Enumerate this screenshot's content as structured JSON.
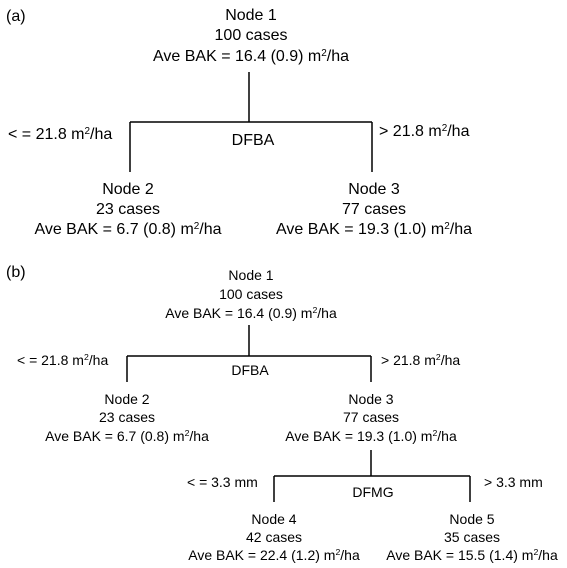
{
  "tree_a": {
    "panel_label": "(a)",
    "split": "DFBA",
    "left_condition": "< = 21.8 m",
    "right_condition": "> 21.8 m",
    "unit_power": "2",
    "unit_tail": "/ha",
    "node1": {
      "name": "Node 1",
      "cases": "100 cases",
      "ave": "Ave BAK = 16.4 (0.9) m"
    },
    "node2": {
      "name": "Node 2",
      "cases": "23 cases",
      "ave": "Ave BAK = 6.7 (0.8) m"
    },
    "node3": {
      "name": "Node 3",
      "cases": "77 cases",
      "ave": "Ave BAK = 19.3 (1.0) m"
    }
  },
  "tree_b": {
    "panel_label": "(b)",
    "split1": "DFBA",
    "split1_left": "< = 21.8 m",
    "split1_right": "> 21.8 m",
    "split2": "DFMG",
    "split2_left": "< = 3.3 mm",
    "split2_right": "> 3.3 mm",
    "unit_power": "2",
    "unit_tail": "/ha",
    "node1": {
      "name": "Node 1",
      "cases": "100 cases",
      "ave": "Ave BAK = 16.4 (0.9) m"
    },
    "node2": {
      "name": "Node 2",
      "cases": "23 cases",
      "ave": "Ave BAK = 6.7 (0.8) m"
    },
    "node3": {
      "name": "Node 3",
      "cases": "77 cases",
      "ave": "Ave BAK = 19.3 (1.0) m"
    },
    "node4": {
      "name": "Node 4",
      "cases": "42 cases",
      "ave": "Ave BAK = 22.4 (1.2) m"
    },
    "node5": {
      "name": "Node 5",
      "cases": "35 cases",
      "ave": "Ave BAK = 15.5 (1.4) m"
    }
  }
}
